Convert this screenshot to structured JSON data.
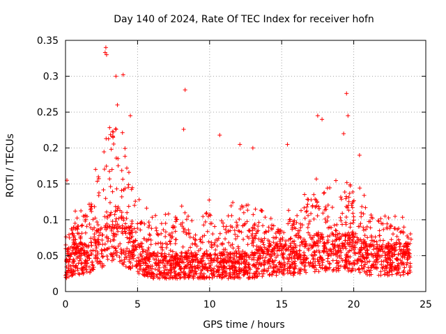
{
  "chart_data": {
    "type": "scatter",
    "title": "Day 140 of 2024, Rate Of TEC Index for receiver hofn",
    "xlabel": "GPS time / hours",
    "ylabel": "ROTI / TECUs",
    "xlim": [
      0,
      25
    ],
    "ylim": [
      0,
      0.35
    ],
    "x_ticks": [
      0,
      5,
      10,
      15,
      20,
      25
    ],
    "x_tick_labels": [
      "0",
      "5",
      "10",
      "15",
      "20",
      "25"
    ],
    "y_ticks": [
      0,
      0.05,
      0.1,
      0.15,
      0.2,
      0.25,
      0.3,
      0.35
    ],
    "y_tick_labels": [
      "0",
      "0.05",
      "0.1",
      "0.15",
      "0.2",
      "0.25",
      "0.3",
      "0.35"
    ],
    "grid": true,
    "marker": "+",
    "color": "#ff0000",
    "x_range_of_data": [
      0,
      24
    ],
    "envelope": {
      "description_hours": [
        0,
        0.5,
        1,
        1.5,
        2,
        2.5,
        3,
        3.5,
        4,
        4.5,
        5,
        6,
        7,
        8,
        9,
        10,
        11,
        12,
        13,
        14,
        15,
        16,
        17,
        18,
        19,
        20,
        21,
        22,
        23,
        24
      ],
      "typical_upper": [
        0.08,
        0.11,
        0.1,
        0.12,
        0.15,
        0.2,
        0.28,
        0.25,
        0.2,
        0.16,
        0.12,
        0.1,
        0.1,
        0.11,
        0.09,
        0.12,
        0.11,
        0.12,
        0.11,
        0.1,
        0.11,
        0.12,
        0.15,
        0.14,
        0.15,
        0.14,
        0.12,
        0.11,
        0.1,
        0.09
      ],
      "typical_median": [
        0.04,
        0.05,
        0.05,
        0.05,
        0.06,
        0.07,
        0.08,
        0.09,
        0.08,
        0.07,
        0.05,
        0.04,
        0.04,
        0.04,
        0.04,
        0.04,
        0.04,
        0.04,
        0.04,
        0.05,
        0.05,
        0.05,
        0.06,
        0.06,
        0.06,
        0.06,
        0.05,
        0.05,
        0.05,
        0.05
      ]
    },
    "notable_points": [
      {
        "x": 2.8,
        "y": 0.34
      },
      {
        "x": 2.75,
        "y": 0.333
      },
      {
        "x": 2.85,
        "y": 0.33
      },
      {
        "x": 3.5,
        "y": 0.3
      },
      {
        "x": 4.0,
        "y": 0.302
      },
      {
        "x": 3.6,
        "y": 0.26
      },
      {
        "x": 4.5,
        "y": 0.245
      },
      {
        "x": 8.3,
        "y": 0.281
      },
      {
        "x": 8.2,
        "y": 0.226
      },
      {
        "x": 10.7,
        "y": 0.218
      },
      {
        "x": 12.1,
        "y": 0.205
      },
      {
        "x": 13.0,
        "y": 0.2
      },
      {
        "x": 15.4,
        "y": 0.205
      },
      {
        "x": 17.5,
        "y": 0.245
      },
      {
        "x": 17.8,
        "y": 0.24
      },
      {
        "x": 19.5,
        "y": 0.276
      },
      {
        "x": 19.6,
        "y": 0.245
      },
      {
        "x": 19.3,
        "y": 0.22
      },
      {
        "x": 20.4,
        "y": 0.19
      },
      {
        "x": 0.1,
        "y": 0.155
      }
    ]
  }
}
